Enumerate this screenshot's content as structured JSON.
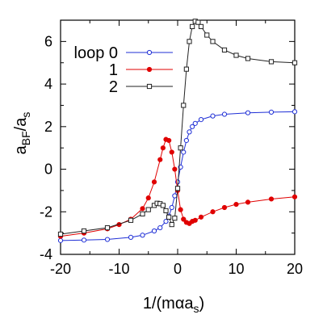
{
  "chart_data": {
    "type": "line",
    "xlabel_main": "1/(mαa",
    "xlabel_sub": "s",
    "xlabel_close": ")",
    "ylabel_a": "a",
    "ylabel_sub1": "BF",
    "ylabel_slash": "/a",
    "ylabel_sub2": "s",
    "xlim": [
      -20,
      20
    ],
    "ylim": [
      -4,
      7
    ],
    "xticks": [
      -20,
      -10,
      0,
      10,
      20
    ],
    "yticks": [
      -4,
      -2,
      0,
      2,
      4,
      6
    ],
    "grid": false,
    "legend_placement": "top-left",
    "series": [
      {
        "name": "loop 0",
        "color": "#1f2fd6",
        "marker": "open-circle",
        "x": [
          -20,
          -16,
          -12,
          -8,
          -6,
          -4,
          -3,
          -2,
          -1.5,
          -1,
          -0.5,
          0,
          0.5,
          1,
          1.5,
          2,
          2.5,
          3,
          4,
          6,
          8,
          12,
          16,
          20
        ],
        "y": [
          -3.35,
          -3.33,
          -3.3,
          -3.2,
          -3.1,
          -2.9,
          -2.75,
          -2.45,
          -2.2,
          -1.8,
          -1.25,
          -0.6,
          0.1,
          0.8,
          1.35,
          1.75,
          2.0,
          2.15,
          2.33,
          2.5,
          2.58,
          2.65,
          2.68,
          2.7
        ]
      },
      {
        "name": "1",
        "color": "#e00000",
        "marker": "filled-circle",
        "x": [
          -20,
          -16,
          -12,
          -10,
          -8,
          -6,
          -5,
          -4,
          -3,
          -2.5,
          -2,
          -1.5,
          -1,
          -0.5,
          0,
          0.5,
          1,
          1.5,
          2,
          2.5,
          3,
          4,
          6,
          8,
          10,
          12,
          16,
          20
        ],
        "y": [
          -3.15,
          -3.0,
          -2.8,
          -2.6,
          -2.35,
          -1.85,
          -1.35,
          -0.6,
          0.45,
          1.0,
          1.4,
          1.35,
          0.8,
          0.0,
          -1.0,
          -1.9,
          -2.35,
          -2.5,
          -2.55,
          -2.45,
          -2.4,
          -2.25,
          -2.0,
          -1.8,
          -1.65,
          -1.55,
          -1.4,
          -1.3
        ]
      },
      {
        "name": "2",
        "color": "#222222",
        "marker": "open-square",
        "x": [
          -20,
          -16,
          -12,
          -8,
          -6,
          -5,
          -4,
          -3.5,
          -3,
          -2.5,
          -2,
          -1.5,
          -1,
          -0.5,
          0,
          0.5,
          1,
          1.5,
          2,
          2.5,
          3,
          3.5,
          4,
          5,
          6,
          8,
          10,
          12,
          16,
          20
        ],
        "y": [
          -3.05,
          -2.9,
          -2.75,
          -2.4,
          -2.1,
          -1.9,
          -1.7,
          -1.6,
          -1.62,
          -1.7,
          -1.95,
          -2.25,
          -2.6,
          -2.3,
          -0.9,
          1.0,
          3.0,
          4.7,
          6.0,
          6.7,
          6.95,
          6.9,
          6.7,
          6.3,
          6.0,
          5.6,
          5.35,
          5.2,
          5.05,
          5.0
        ]
      }
    ]
  }
}
